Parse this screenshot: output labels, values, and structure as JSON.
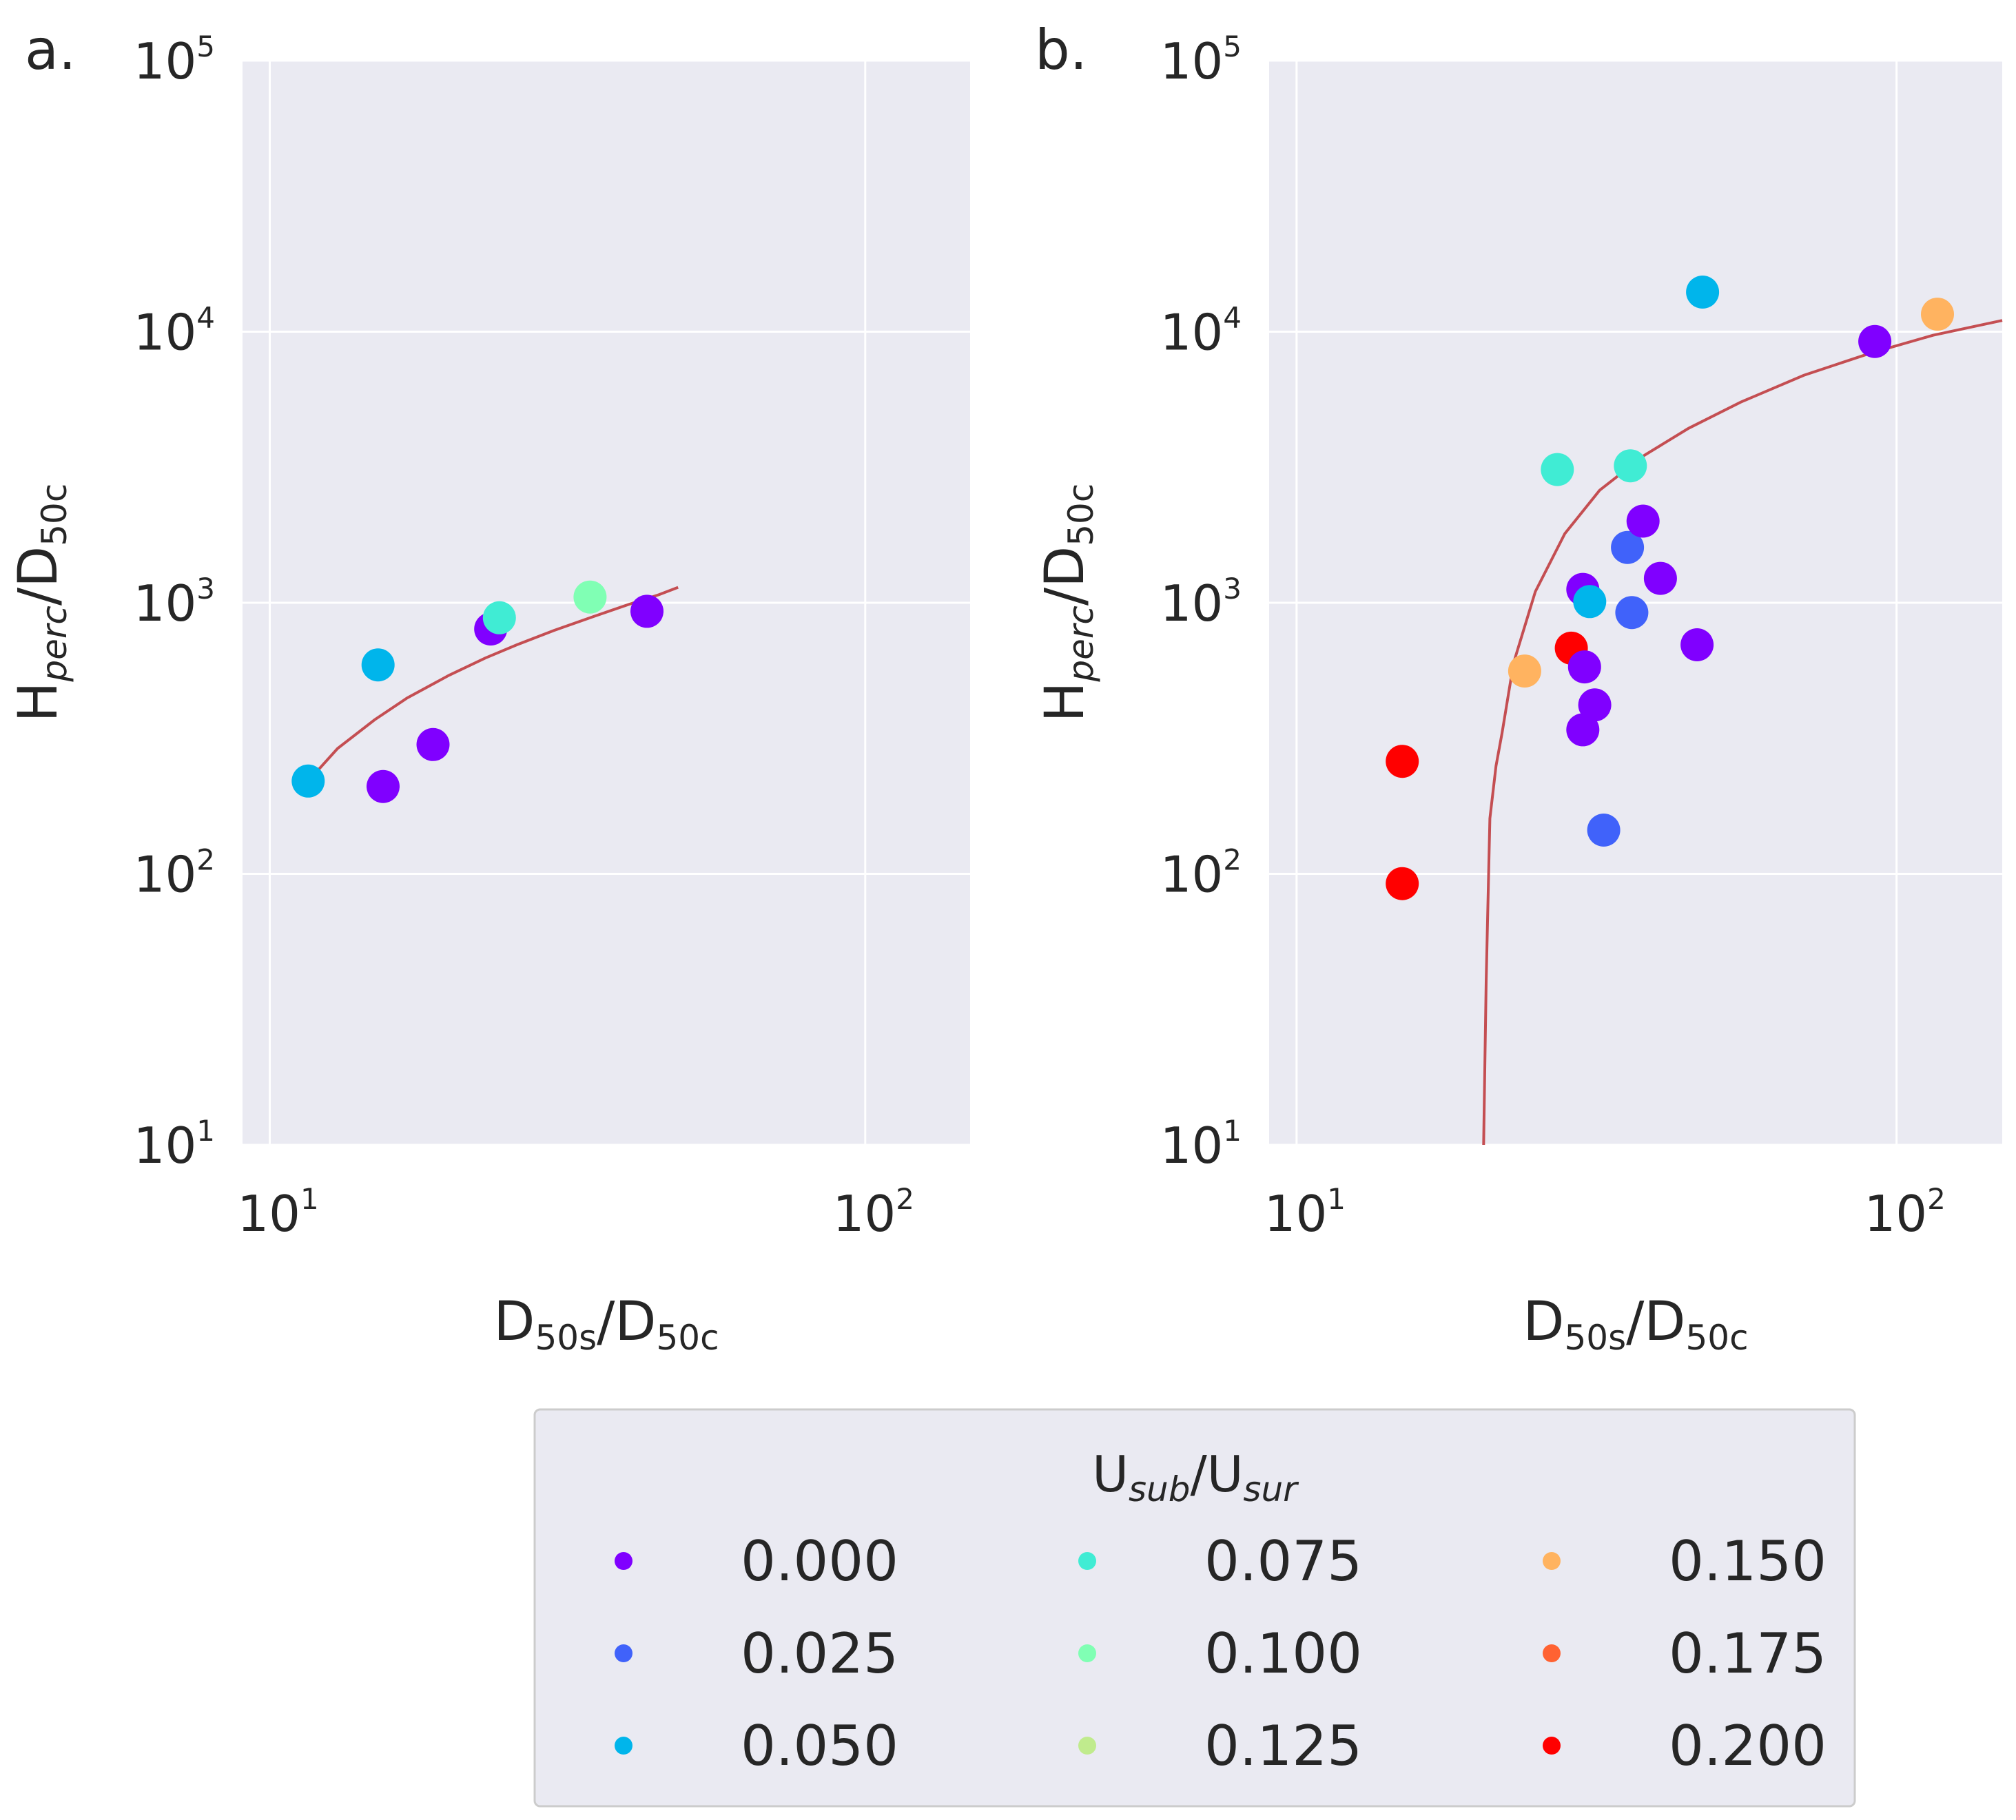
{
  "chart_data": [
    {
      "type": "scatter",
      "panel_label": "a.",
      "xscale": "log",
      "yscale": "log",
      "xlim": [
        9,
        150
      ],
      "ylim": [
        10,
        100000
      ],
      "x_ticks": [
        {
          "value": 10,
          "base": "10",
          "exp": "1"
        },
        {
          "value": 100,
          "base": "10",
          "exp": "2"
        }
      ],
      "y_ticks": [
        {
          "value": 10,
          "base": "10",
          "exp": "1"
        },
        {
          "value": 100,
          "base": "10",
          "exp": "2"
        },
        {
          "value": 1000,
          "base": "10",
          "exp": "3"
        },
        {
          "value": 10000,
          "base": "10",
          "exp": "4"
        },
        {
          "value": 100000,
          "base": "10",
          "exp": "5"
        }
      ],
      "xlabel": {
        "main1": "D",
        "sub1": "50s",
        "sep": "/D",
        "sub2": "50c"
      },
      "ylabel": {
        "main1": "H",
        "sub1": "perc",
        "sep": "/D",
        "sub2": "50c"
      },
      "grid": true,
      "points": [
        {
          "x": 11.6,
          "y": 220,
          "u": 0.05
        },
        {
          "x": 15.2,
          "y": 590,
          "u": 0.05
        },
        {
          "x": 15.5,
          "y": 210,
          "u": 0.0
        },
        {
          "x": 18.8,
          "y": 300,
          "u": 0.0
        },
        {
          "x": 23.5,
          "y": 800,
          "u": 0.0
        },
        {
          "x": 24.3,
          "y": 880,
          "u": 0.065
        },
        {
          "x": 34.5,
          "y": 1050,
          "u": 0.09
        },
        {
          "x": 43.0,
          "y": 930,
          "u": 0.0
        }
      ],
      "fit": {
        "color": "#c44e52",
        "x": [
          11.6,
          13,
          15,
          17,
          20,
          23,
          26,
          30,
          35,
          40,
          45,
          48.5
        ],
        "y": [
          220,
          290,
          370,
          445,
          540,
          625,
          700,
          790,
          890,
          985,
          1070,
          1140
        ]
      }
    },
    {
      "type": "scatter",
      "panel_label": "b.",
      "xscale": "log",
      "yscale": "log",
      "xlim": [
        9,
        150
      ],
      "ylim": [
        10,
        100000
      ],
      "x_ticks": [
        {
          "value": 10,
          "base": "10",
          "exp": "1"
        },
        {
          "value": 100,
          "base": "10",
          "exp": "2"
        }
      ],
      "y_ticks": [
        {
          "value": 10,
          "base": "10",
          "exp": "1"
        },
        {
          "value": 100,
          "base": "10",
          "exp": "2"
        },
        {
          "value": 1000,
          "base": "10",
          "exp": "3"
        },
        {
          "value": 10000,
          "base": "10",
          "exp": "4"
        },
        {
          "value": 100000,
          "base": "10",
          "exp": "5"
        }
      ],
      "xlabel": {
        "main1": "D",
        "sub1": "50s",
        "sep": "/D",
        "sub2": "50c"
      },
      "ylabel": {
        "main1": "H",
        "sub1": "perc",
        "sep": "/D",
        "sub2": "50c"
      },
      "grid": true,
      "points": [
        {
          "x": 15.0,
          "y": 260,
          "u": 0.2
        },
        {
          "x": 15.0,
          "y": 92,
          "u": 0.2
        },
        {
          "x": 24.0,
          "y": 560,
          "u": 0.16
        },
        {
          "x": 27.2,
          "y": 3100,
          "u": 0.065
        },
        {
          "x": 28.7,
          "y": 680,
          "u": 0.19
        },
        {
          "x": 30.0,
          "y": 1120,
          "u": 0.0
        },
        {
          "x": 30.2,
          "y": 580,
          "u": 0.0
        },
        {
          "x": 30.0,
          "y": 340,
          "u": 0.0
        },
        {
          "x": 30.8,
          "y": 1010,
          "u": 0.04
        },
        {
          "x": 31.4,
          "y": 420,
          "u": 0.0
        },
        {
          "x": 32.5,
          "y": 145,
          "u": 0.035
        },
        {
          "x": 35.6,
          "y": 1600,
          "u": 0.015
        },
        {
          "x": 36.0,
          "y": 3200,
          "u": 0.065
        },
        {
          "x": 36.2,
          "y": 920,
          "u": 0.035
        },
        {
          "x": 37.8,
          "y": 2000,
          "u": 0.005
        },
        {
          "x": 40.4,
          "y": 1230,
          "u": 0.005
        },
        {
          "x": 46.5,
          "y": 700,
          "u": 0.0
        },
        {
          "x": 47.5,
          "y": 14000,
          "u": 0.055
        },
        {
          "x": 92.0,
          "y": 9200,
          "u": 0.0
        },
        {
          "x": 117.0,
          "y": 11600,
          "u": 0.15
        }
      ],
      "fit": {
        "color": "#c44e52",
        "x": [
          20.5,
          20.7,
          21.0,
          21.5,
          22.0,
          23.0,
          25.0,
          28.0,
          32.0,
          38.0,
          45.0,
          55.0,
          70.0,
          90.0,
          115.0,
          150.0
        ],
        "y": [
          10,
          40,
          160,
          250,
          330,
          600,
          1100,
          1800,
          2600,
          3500,
          4400,
          5500,
          6900,
          8300,
          9700,
          11000
        ]
      }
    }
  ],
  "legend": {
    "title": {
      "main1": "U",
      "sub1": "sub",
      "sep": "/U",
      "sub2": "sur"
    },
    "entries": [
      {
        "label": "0.000",
        "color": "#8000ff"
      },
      {
        "label": "0.025",
        "color": "#4062fa"
      },
      {
        "label": "0.050",
        "color": "#00b5eb"
      },
      {
        "label": "0.075",
        "color": "#40ecd4"
      },
      {
        "label": "0.100",
        "color": "#80ffb4"
      },
      {
        "label": "0.125",
        "color": "#c0eb8d"
      },
      {
        "label": "0.150",
        "color": "#ffb360"
      },
      {
        "label": "0.175",
        "color": "#ff6232"
      },
      {
        "label": "0.200",
        "color": "#ff0000"
      }
    ]
  },
  "colors": {
    "plot_background": "#eaeaf2",
    "grid": "#ffffff",
    "legend_background": "#eaeaf2",
    "legend_border": "#cccccc"
  }
}
